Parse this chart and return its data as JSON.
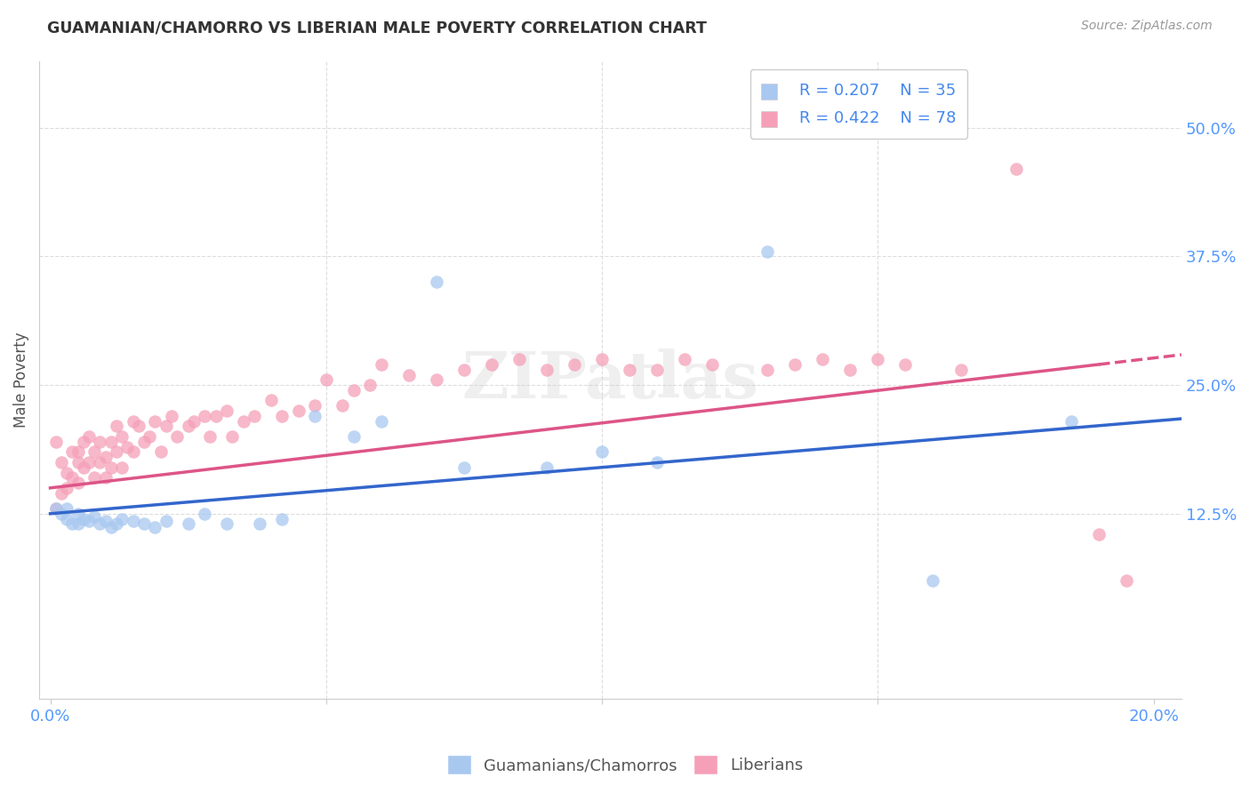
{
  "title": "GUAMANIAN/CHAMORRO VS LIBERIAN MALE POVERTY CORRELATION CHART",
  "source": "Source: ZipAtlas.com",
  "ylabel": "Male Poverty",
  "tick_color": "#5599ff",
  "color_blue": "#a8c8f0",
  "color_pink": "#f5a0b8",
  "color_blue_line": "#3366cc",
  "color_pink_line": "#dd5588",
  "color_title": "#333333",
  "color_source": "#999999",
  "color_axis_label": "#555555",
  "background_color": "#ffffff",
  "grid_color": "#dddddd",
  "legend_text_color": "#4488ee",
  "ytick_labels": [
    "50.0%",
    "37.5%",
    "25.0%",
    "12.5%"
  ],
  "ytick_positions": [
    0.5,
    0.375,
    0.25,
    0.125
  ],
  "guamanian_x": [
    0.001,
    0.002,
    0.003,
    0.003,
    0.004,
    0.005,
    0.005,
    0.006,
    0.007,
    0.008,
    0.009,
    0.01,
    0.011,
    0.012,
    0.013,
    0.015,
    0.017,
    0.019,
    0.021,
    0.025,
    0.028,
    0.032,
    0.038,
    0.042,
    0.048,
    0.055,
    0.06,
    0.07,
    0.075,
    0.09,
    0.1,
    0.11,
    0.13,
    0.16,
    0.185
  ],
  "guamanian_y": [
    0.13,
    0.125,
    0.12,
    0.13,
    0.115,
    0.125,
    0.115,
    0.12,
    0.118,
    0.122,
    0.115,
    0.118,
    0.112,
    0.115,
    0.12,
    0.118,
    0.115,
    0.112,
    0.118,
    0.115,
    0.125,
    0.115,
    0.115,
    0.12,
    0.22,
    0.2,
    0.215,
    0.35,
    0.17,
    0.17,
    0.185,
    0.175,
    0.38,
    0.06,
    0.215
  ],
  "liberian_x": [
    0.001,
    0.001,
    0.002,
    0.002,
    0.003,
    0.003,
    0.004,
    0.004,
    0.005,
    0.005,
    0.005,
    0.006,
    0.006,
    0.007,
    0.007,
    0.008,
    0.008,
    0.009,
    0.009,
    0.01,
    0.01,
    0.011,
    0.011,
    0.012,
    0.012,
    0.013,
    0.013,
    0.014,
    0.015,
    0.015,
    0.016,
    0.017,
    0.018,
    0.019,
    0.02,
    0.021,
    0.022,
    0.023,
    0.025,
    0.026,
    0.028,
    0.029,
    0.03,
    0.032,
    0.033,
    0.035,
    0.037,
    0.04,
    0.042,
    0.045,
    0.048,
    0.05,
    0.053,
    0.055,
    0.058,
    0.06,
    0.065,
    0.07,
    0.075,
    0.08,
    0.085,
    0.09,
    0.095,
    0.1,
    0.105,
    0.11,
    0.115,
    0.12,
    0.13,
    0.135,
    0.14,
    0.145,
    0.15,
    0.155,
    0.165,
    0.175,
    0.19,
    0.195
  ],
  "liberian_y": [
    0.195,
    0.13,
    0.175,
    0.145,
    0.165,
    0.15,
    0.185,
    0.16,
    0.175,
    0.185,
    0.155,
    0.195,
    0.17,
    0.2,
    0.175,
    0.185,
    0.16,
    0.195,
    0.175,
    0.18,
    0.16,
    0.195,
    0.17,
    0.21,
    0.185,
    0.2,
    0.17,
    0.19,
    0.215,
    0.185,
    0.21,
    0.195,
    0.2,
    0.215,
    0.185,
    0.21,
    0.22,
    0.2,
    0.21,
    0.215,
    0.22,
    0.2,
    0.22,
    0.225,
    0.2,
    0.215,
    0.22,
    0.235,
    0.22,
    0.225,
    0.23,
    0.255,
    0.23,
    0.245,
    0.25,
    0.27,
    0.26,
    0.255,
    0.265,
    0.27,
    0.275,
    0.265,
    0.27,
    0.275,
    0.265,
    0.265,
    0.275,
    0.27,
    0.265,
    0.27,
    0.275,
    0.265,
    0.275,
    0.27,
    0.265,
    0.46,
    0.105,
    0.06
  ]
}
